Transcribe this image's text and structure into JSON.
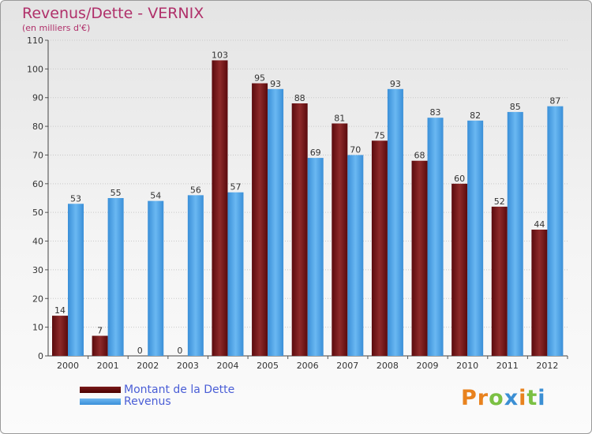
{
  "chart_data": {
    "type": "bar",
    "title": "Revenus/Dette - VERNIX",
    "subtitle": "(en milliers d'€)",
    "categories": [
      "2000",
      "2001",
      "2002",
      "2003",
      "2004",
      "2005",
      "2006",
      "2007",
      "2008",
      "2009",
      "2010",
      "2011",
      "2012"
    ],
    "series": [
      {
        "name": "Montant de la Dette",
        "values": [
          14,
          7,
          0,
          0,
          103,
          95,
          88,
          81,
          75,
          68,
          60,
          52,
          44
        ],
        "color": "#6b0f12"
      },
      {
        "name": "Revenus",
        "values": [
          53,
          55,
          54,
          56,
          57,
          93,
          69,
          70,
          93,
          83,
          82,
          85,
          87
        ],
        "color": "#4aa3e6"
      }
    ],
    "ylim": [
      0,
      110
    ],
    "yticks": [
      0,
      10,
      20,
      30,
      40,
      50,
      60,
      70,
      80,
      90,
      100,
      110
    ],
    "grid": true,
    "legend_position": "bottom-left"
  },
  "logo": {
    "text": "Proxiti",
    "colors": [
      "#e8821e",
      "#e8821e",
      "#7bc043",
      "#3b8fd4",
      "#e8821e",
      "#7bc043",
      "#3b8fd4"
    ]
  }
}
